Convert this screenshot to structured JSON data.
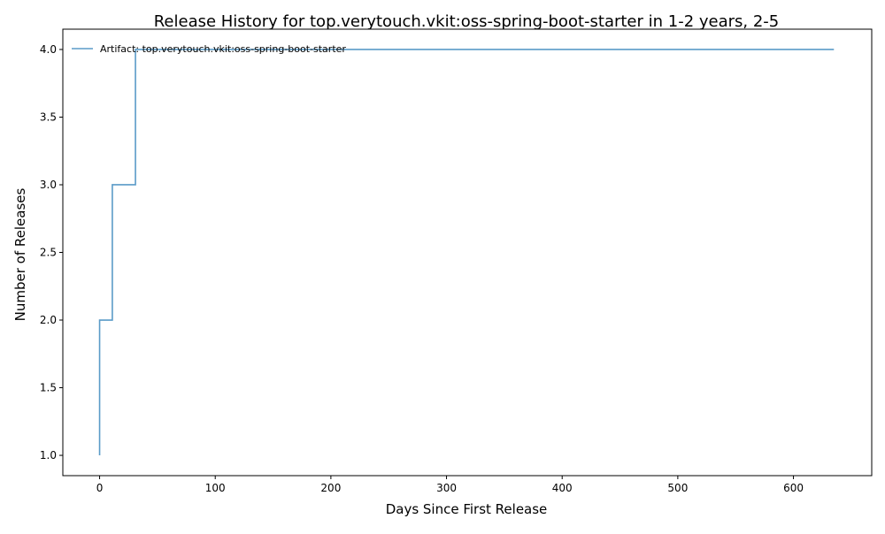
{
  "chart_data": {
    "type": "line",
    "step": "post",
    "title": "Release History for top.verytouch.vkit:oss-spring-boot-starter in 1-2 years, 2-5",
    "xlabel": "Days Since First Release",
    "ylabel": "Number of Releases",
    "xlim": [
      -31.8,
      667.7
    ],
    "ylim": [
      0.85,
      4.15
    ],
    "x_ticks": [
      0,
      100,
      200,
      300,
      400,
      500,
      600
    ],
    "x_tick_labels": [
      "0",
      "100",
      "200",
      "300",
      "400",
      "500",
      "600"
    ],
    "y_ticks": [
      1.0,
      1.5,
      2.0,
      2.5,
      3.0,
      3.5,
      4.0
    ],
    "y_tick_labels": [
      "1.0",
      "1.5",
      "2.0",
      "2.5",
      "3.0",
      "3.5",
      "4.0"
    ],
    "grid": false,
    "legend_position": "top-left",
    "series": [
      {
        "name": "Artifact: top.verytouch.vkit:oss-spring-boot-starter",
        "color": "#5a9bc8",
        "x": [
          0,
          0,
          11,
          31,
          635
        ],
        "y": [
          1,
          2,
          3,
          4,
          4
        ]
      }
    ]
  }
}
